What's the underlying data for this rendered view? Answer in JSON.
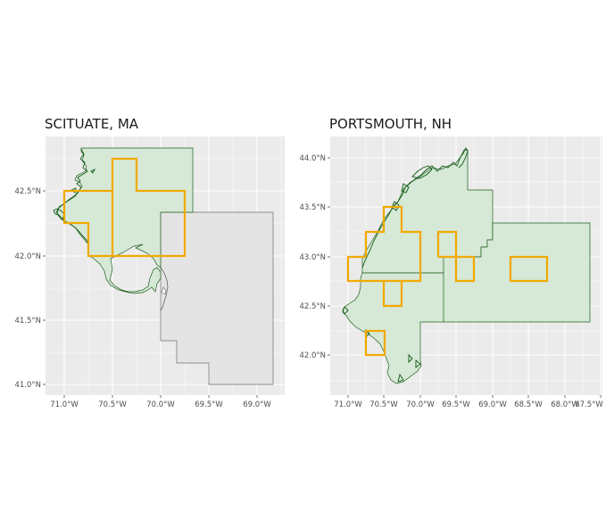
{
  "colors": {
    "panel_bg": "#ebebeb",
    "grid": "#ffffff",
    "land_fill": "#d6e8d6",
    "land_stroke": "#1f5f1f",
    "coast": "#0f5a14",
    "other_fill": "#e4e4e4",
    "other_stroke": "#6e6e6e",
    "box": "#f2a900"
  },
  "panels": [
    {
      "title": "SCITUATE, MA",
      "x_ticks": [
        {
          "label": "71.0°W"
        },
        {
          "label": "70.5°W"
        },
        {
          "label": "70.0°W"
        },
        {
          "label": "69.5°W"
        },
        {
          "label": "69.0°W"
        }
      ],
      "y_ticks": [
        {
          "label": "42.5°N"
        },
        {
          "label": "42.0°N"
        },
        {
          "label": "41.5°N"
        },
        {
          "label": "41.0°N"
        }
      ]
    },
    {
      "title": "PORTSMOUTH, NH",
      "x_ticks": [
        {
          "label": "71.0°W"
        },
        {
          "label": "70.5°W"
        },
        {
          "label": "70.0°W"
        },
        {
          "label": "69.5°W"
        },
        {
          "label": "69.0°W"
        },
        {
          "label": "68.5°W"
        },
        {
          "label": "68.0°W"
        },
        {
          "label": "67.5°W"
        }
      ],
      "y_ticks": [
        {
          "label": "44.0°N"
        },
        {
          "label": "43.5°N"
        },
        {
          "label": "43.0°N"
        },
        {
          "label": "42.5°N"
        },
        {
          "label": "42.0°N"
        }
      ]
    }
  ]
}
